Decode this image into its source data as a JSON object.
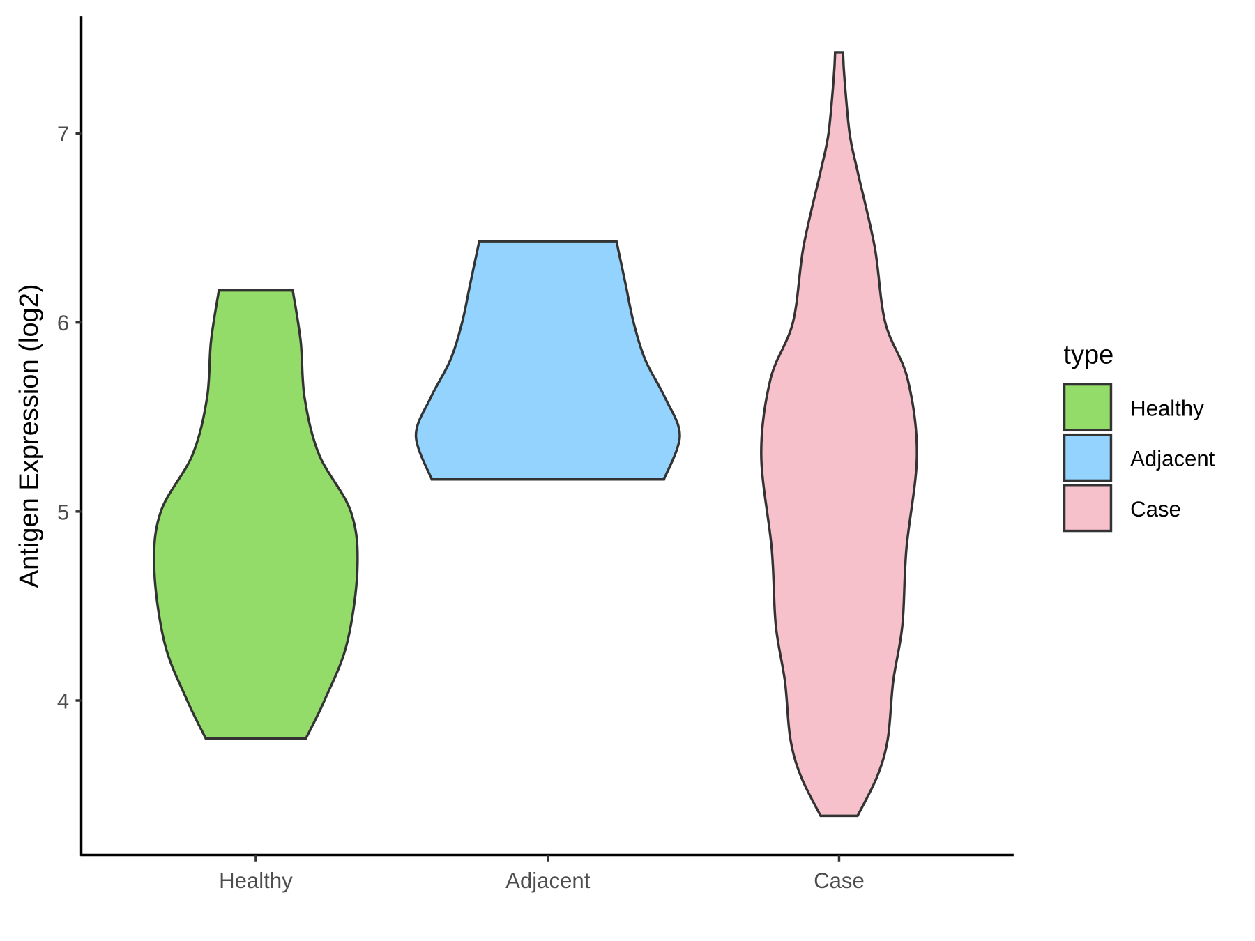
{
  "chart_data": {
    "type": "violin",
    "title": "",
    "xlabel": "",
    "ylabel": "Antigen Expression (log2)",
    "categories": [
      "Healthy",
      "Adjacent",
      "Case"
    ],
    "y_ticks": [
      4,
      5,
      6,
      7
    ],
    "ylim": [
      3.2,
      7.65
    ],
    "grid": false,
    "legend": {
      "title": "type",
      "placement": "right",
      "entries": [
        "Healthy",
        "Adjacent",
        "Case"
      ]
    },
    "series": [
      {
        "name": "Healthy",
        "color": "#93DC69",
        "min": 3.8,
        "max": 6.17,
        "density": [
          [
            3.8,
            0.38
          ],
          [
            4.0,
            0.52
          ],
          [
            4.3,
            0.69
          ],
          [
            4.7,
            0.77
          ],
          [
            5.0,
            0.72
          ],
          [
            5.3,
            0.48
          ],
          [
            5.6,
            0.37
          ],
          [
            5.9,
            0.34
          ],
          [
            6.17,
            0.28
          ]
        ]
      },
      {
        "name": "Adjacent",
        "color": "#93D3FE",
        "min": 5.17,
        "max": 6.43,
        "density": [
          [
            5.17,
            0.88
          ],
          [
            5.4,
            1.0
          ],
          [
            5.6,
            0.89
          ],
          [
            5.8,
            0.74
          ],
          [
            6.0,
            0.65
          ],
          [
            6.2,
            0.59
          ],
          [
            6.43,
            0.52
          ]
        ]
      },
      {
        "name": "Case",
        "color": "#F7C1CB",
        "min": 3.39,
        "max": 7.43,
        "density": [
          [
            3.39,
            0.14
          ],
          [
            3.6,
            0.29
          ],
          [
            3.8,
            0.37
          ],
          [
            4.1,
            0.41
          ],
          [
            4.4,
            0.48
          ],
          [
            4.8,
            0.51
          ],
          [
            5.3,
            0.59
          ],
          [
            5.7,
            0.52
          ],
          [
            6.0,
            0.35
          ],
          [
            6.4,
            0.27
          ],
          [
            6.8,
            0.14
          ],
          [
            7.0,
            0.08
          ],
          [
            7.3,
            0.04
          ],
          [
            7.43,
            0.03
          ]
        ]
      }
    ]
  }
}
